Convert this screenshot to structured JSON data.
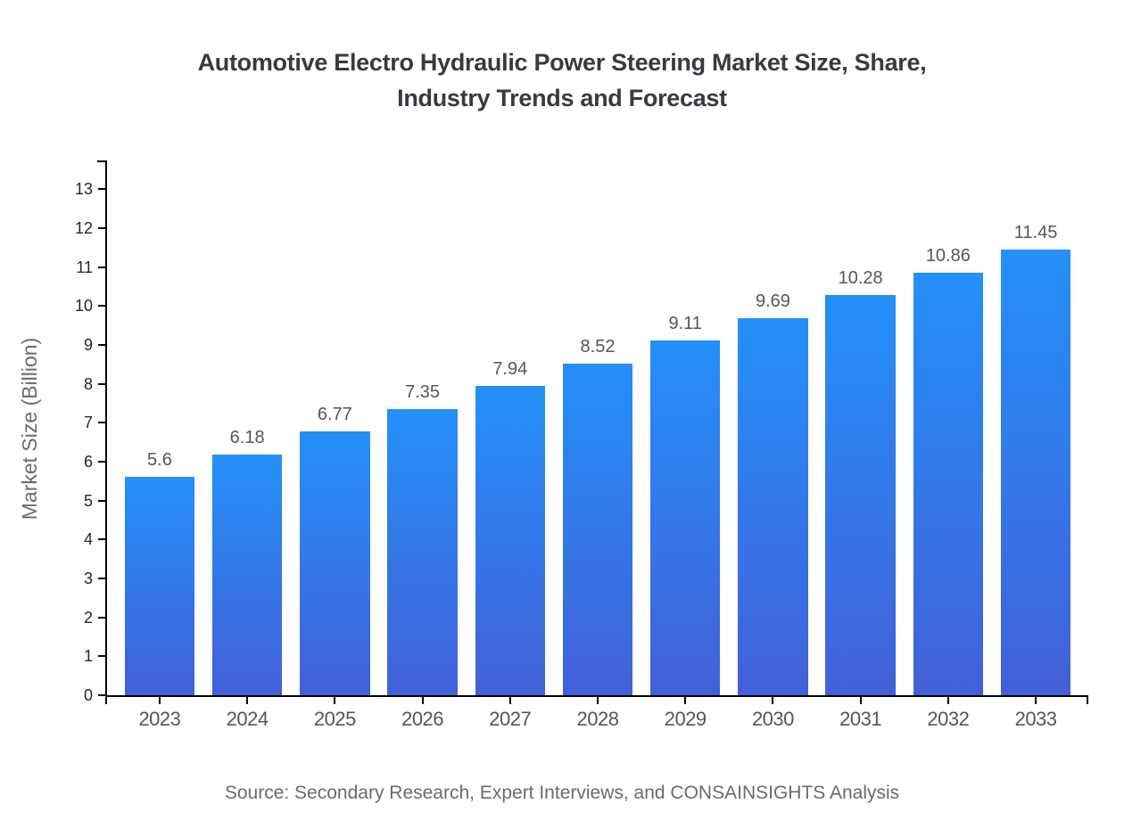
{
  "title": {
    "line1": "Automotive Electro Hydraulic Power Steering Market Size, Share,",
    "line2": "Industry Trends and Forecast"
  },
  "source": "Source: Secondary Research, Expert Interviews, and CONSAINSIGHTS Analysis",
  "colors": {
    "bar_gradient_top": "#2490F8",
    "bar_gradient_bottom": "#4360D8",
    "axis": "#000000",
    "title_text": "#363b40",
    "y_tick_label": "#262626",
    "x_tick_label": "#565656",
    "value_label": "#565656",
    "muted_text": "#6b6b6b"
  },
  "chart_data": {
    "type": "bar",
    "title": "Automotive Electro Hydraulic Power Steering Market Size, Share, Industry Trends and Forecast",
    "categories": [
      "2023",
      "2024",
      "2025",
      "2026",
      "2027",
      "2028",
      "2029",
      "2030",
      "2031",
      "2032",
      "2033"
    ],
    "values": [
      5.6,
      6.18,
      6.77,
      7.35,
      7.94,
      8.52,
      9.11,
      9.69,
      10.28,
      10.86,
      11.45
    ],
    "value_labels": [
      "5.6",
      "6.18",
      "6.77",
      "7.35",
      "7.94",
      "8.52",
      "9.11",
      "9.69",
      "10.28",
      "10.86",
      "11.45"
    ],
    "xlabel": "",
    "ylabel": "Market Size (Billion)",
    "ylim": [
      0,
      13.74
    ],
    "yticks": [
      0,
      1,
      2,
      3,
      4,
      5,
      6,
      7,
      8,
      9,
      10,
      11,
      12,
      13
    ],
    "grid": false,
    "legend": false,
    "bar_gradient": [
      "#2490F8",
      "#4360D8"
    ]
  }
}
